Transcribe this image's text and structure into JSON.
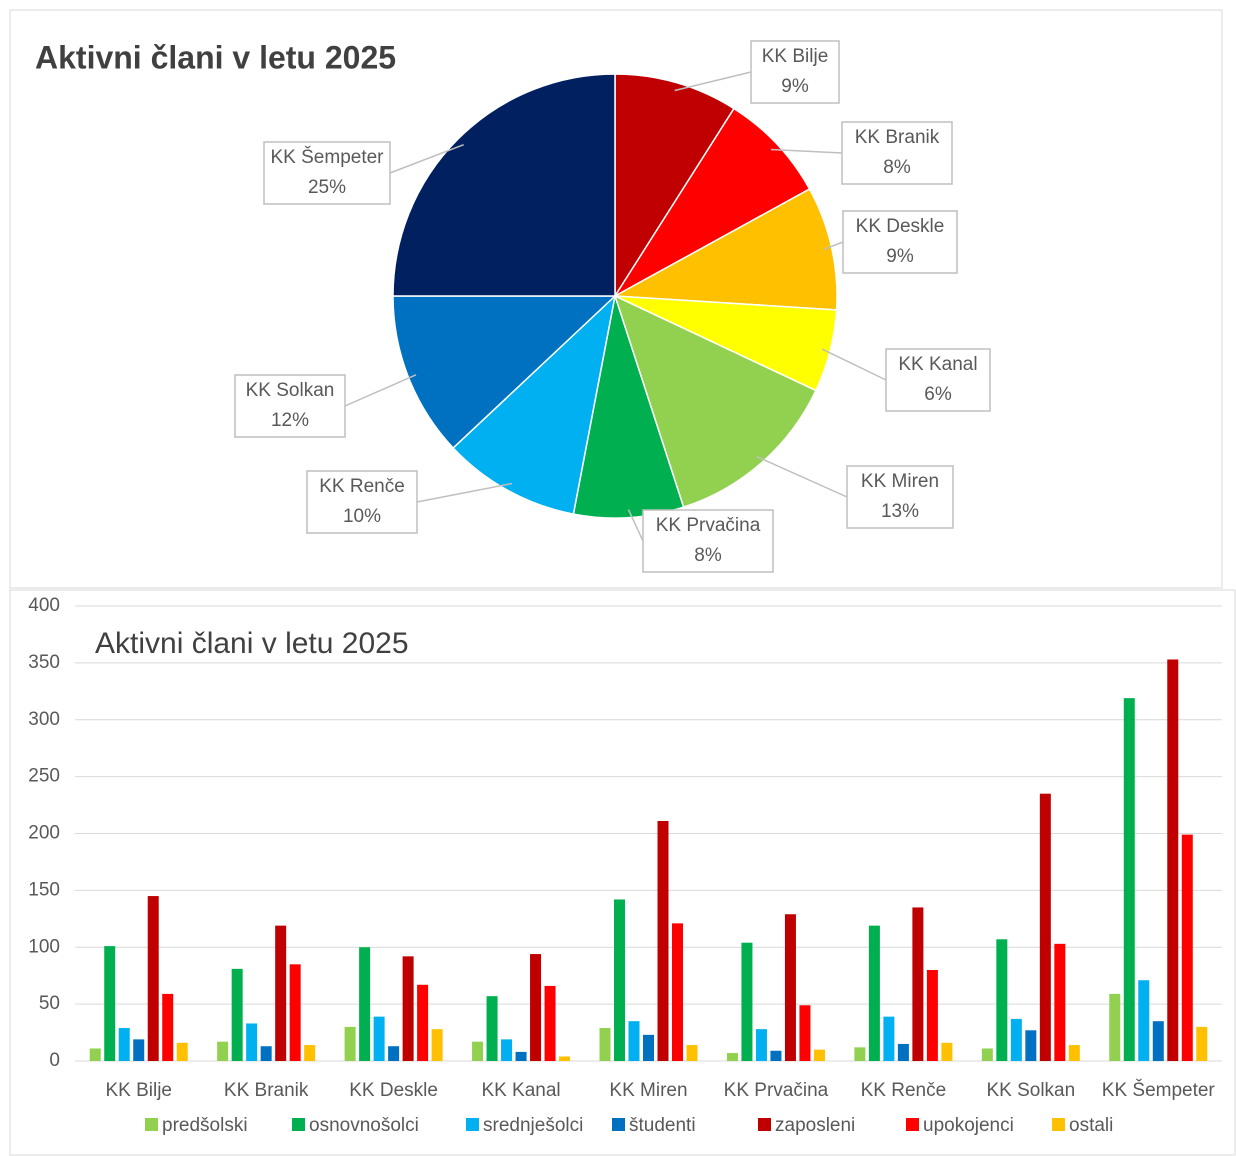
{
  "chart_data": [
    {
      "type": "pie",
      "title": "Aktivni člani v letu 2025",
      "categories": [
        "KK Bilje",
        "KK Branik",
        "KK Deskle",
        "KK Kanal",
        "KK Miren",
        "KK Prvačina",
        "KK Renče",
        "KK Solkan",
        "KK Šempeter"
      ],
      "values": [
        9,
        8,
        9,
        6,
        13,
        8,
        10,
        12,
        25
      ],
      "value_labels": [
        "9%",
        "8%",
        "9%",
        "6%",
        "13%",
        "8%",
        "10%",
        "12%",
        "25%"
      ],
      "colors": [
        "#c00000",
        "#ff0000",
        "#ffc000",
        "#ffff00",
        "#92d050",
        "#00b050",
        "#00b0f0",
        "#0070c0",
        "#002060"
      ]
    },
    {
      "type": "bar",
      "title": "Aktivni člani v letu 2025",
      "categories": [
        "KK Bilje",
        "KK Branik",
        "KK Deskle",
        "KK Kanal",
        "KK Miren",
        "KK Prvačina",
        "KK Renče",
        "KK Solkan",
        "KK Šempeter"
      ],
      "series": [
        {
          "name": "predšolski",
          "color": "#92d050",
          "values": [
            11,
            17,
            30,
            17,
            29,
            7,
            12,
            11,
            59
          ]
        },
        {
          "name": "osnovnošolci",
          "color": "#00b050",
          "values": [
            101,
            81,
            100,
            57,
            142,
            104,
            119,
            107,
            319
          ]
        },
        {
          "name": "srednješolci",
          "color": "#00b0f0",
          "values": [
            29,
            33,
            39,
            19,
            35,
            28,
            39,
            37,
            71
          ]
        },
        {
          "name": "študenti",
          "color": "#0070c0",
          "values": [
            19,
            13,
            13,
            8,
            23,
            9,
            15,
            27,
            35
          ]
        },
        {
          "name": "zaposleni",
          "color": "#c00000",
          "values": [
            145,
            119,
            92,
            94,
            211,
            129,
            135,
            235,
            353
          ]
        },
        {
          "name": "upokojenci",
          "color": "#ff0000",
          "values": [
            59,
            85,
            67,
            66,
            121,
            49,
            80,
            103,
            199
          ]
        },
        {
          "name": "ostali",
          "color": "#ffc000",
          "values": [
            16,
            14,
            28,
            4,
            14,
            10,
            16,
            14,
            30
          ]
        }
      ],
      "ylim": [
        0,
        400
      ],
      "yticks": [
        0,
        50,
        100,
        150,
        200,
        250,
        300,
        350,
        400
      ],
      "grid": true,
      "legend": "bottom"
    }
  ]
}
